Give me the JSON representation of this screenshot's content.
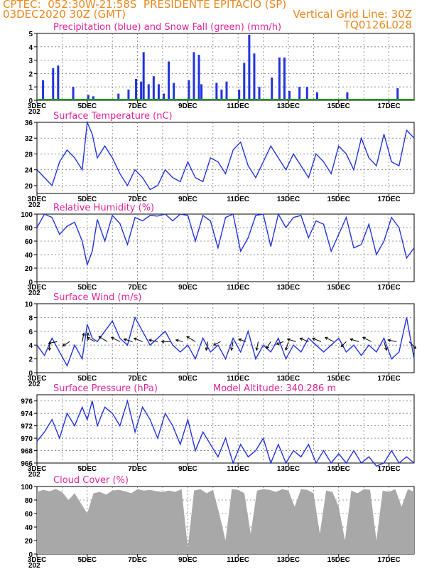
{
  "header": {
    "line1": "CPTEC:  052:30W-21:58S  PRESIDENTE EPITACIO (SP)",
    "line2_left": "03DEC2020 30Z (GMT)",
    "line2_right": "Vertical Grid Line: 30Z",
    "line3_right": "TQ0126L028"
  },
  "colors": {
    "header": "#e8871e",
    "title": "#e0249a",
    "series": "#2233dd",
    "snow": "#1a9a1a",
    "cloud": "#a8a8a8"
  },
  "x_axis": {
    "labels": [
      "3DEC",
      "5DEC",
      "7DEC",
      "9DEC",
      "11DEC",
      "13DEC",
      "15DEC",
      "17DEC"
    ],
    "year_fragment": "202"
  },
  "chart_data": [
    {
      "type": "bar",
      "title": "Precipitation (blue) and Snow Fall (green) (mm/h)",
      "ylim": [
        0,
        5
      ],
      "yticks": [
        "0",
        "1",
        "2",
        "3",
        "4",
        "5"
      ],
      "series": [
        {
          "name": "Precipitation",
          "values_by_day": [
            [
              3.2,
              1.5
            ],
            [
              3.6,
              2.4
            ],
            [
              3.8,
              2.6
            ],
            [
              4.4,
              1.0
            ],
            [
              5.0,
              0.4
            ],
            [
              5.2,
              0.3
            ],
            [
              6.2,
              0.5
            ],
            [
              6.6,
              0.8
            ],
            [
              6.9,
              1.6
            ],
            [
              7.1,
              1.4
            ],
            [
              7.2,
              3.6
            ],
            [
              7.4,
              1.2
            ],
            [
              7.6,
              1.8
            ],
            [
              7.8,
              1.2
            ],
            [
              8.0,
              0.5
            ],
            [
              8.2,
              2.9
            ],
            [
              8.4,
              1.3
            ],
            [
              9.0,
              1.5
            ],
            [
              9.2,
              3.6
            ],
            [
              9.4,
              3.4
            ],
            [
              9.5,
              1.2
            ],
            [
              10.1,
              1.3
            ],
            [
              10.3,
              0.8
            ],
            [
              10.5,
              1.4
            ],
            [
              11.0,
              0.8
            ],
            [
              11.2,
              2.8
            ],
            [
              11.4,
              4.9
            ],
            [
              11.6,
              3.5
            ],
            [
              11.8,
              1.0
            ],
            [
              12.3,
              1.7
            ],
            [
              12.6,
              3.2
            ],
            [
              12.8,
              3.2
            ],
            [
              13.0,
              0.7
            ],
            [
              13.4,
              1.0
            ],
            [
              13.7,
              1.0
            ],
            [
              14.1,
              0.6
            ],
            [
              15.3,
              0.6
            ],
            [
              17.3,
              0.9
            ]
          ]
        },
        {
          "name": "Snow Fall",
          "values": [
            0
          ]
        }
      ]
    },
    {
      "type": "line",
      "title": "Surface Temperature (nC)",
      "ylim": [
        18,
        36
      ],
      "yticks": [
        "20",
        "24",
        "28",
        "32",
        "36"
      ],
      "x": [
        3.0,
        3.3,
        3.6,
        3.9,
        4.2,
        4.5,
        4.8,
        5.0,
        5.2,
        5.4,
        5.7,
        6.0,
        6.3,
        6.6,
        6.9,
        7.2,
        7.5,
        7.8,
        8.1,
        8.4,
        8.7,
        9.0,
        9.3,
        9.6,
        9.9,
        10.2,
        10.5,
        10.8,
        11.1,
        11.4,
        11.7,
        12.0,
        12.3,
        12.6,
        12.9,
        13.2,
        13.5,
        13.8,
        14.1,
        14.4,
        14.7,
        15.0,
        15.3,
        15.6,
        15.9,
        16.2,
        16.5,
        16.8,
        17.1,
        17.4,
        17.7,
        18.0
      ],
      "values": [
        24,
        22,
        20,
        26,
        29,
        27,
        24,
        36,
        33,
        27,
        30,
        27,
        23,
        20,
        24,
        22,
        19,
        20,
        24,
        22,
        21,
        26,
        22,
        21,
        27,
        26,
        23,
        29,
        31,
        25,
        22,
        26,
        30,
        27,
        24,
        28,
        25,
        22,
        28,
        26,
        23,
        30,
        28,
        24,
        32,
        27,
        25,
        33,
        26,
        25,
        34,
        32
      ]
    },
    {
      "type": "line",
      "title": "Relative Humidity (%)",
      "ylim": [
        0,
        100
      ],
      "yticks": [
        "0",
        "20",
        "40",
        "60",
        "80",
        "100"
      ],
      "x": [
        3.0,
        3.3,
        3.6,
        3.9,
        4.2,
        4.5,
        4.8,
        5.0,
        5.2,
        5.4,
        5.7,
        6.0,
        6.3,
        6.6,
        6.9,
        7.2,
        7.5,
        7.8,
        8.1,
        8.4,
        8.7,
        9.0,
        9.3,
        9.6,
        9.9,
        10.2,
        10.5,
        10.8,
        11.1,
        11.4,
        11.7,
        12.0,
        12.3,
        12.6,
        12.9,
        13.2,
        13.5,
        13.8,
        14.1,
        14.4,
        14.7,
        15.0,
        15.3,
        15.6,
        15.9,
        16.2,
        16.5,
        16.8,
        17.1,
        17.4,
        17.7,
        18.0
      ],
      "values": [
        80,
        100,
        95,
        70,
        82,
        88,
        60,
        25,
        45,
        92,
        60,
        98,
        86,
        55,
        95,
        90,
        98,
        97,
        100,
        90,
        100,
        98,
        60,
        98,
        90,
        50,
        95,
        100,
        45,
        65,
        98,
        100,
        52,
        100,
        80,
        95,
        98,
        65,
        90,
        85,
        45,
        70,
        95,
        50,
        55,
        85,
        40,
        60,
        95,
        80,
        35,
        50
      ]
    },
    {
      "type": "line",
      "title": "Surface Wind (m/s)",
      "ylim": [
        0,
        10
      ],
      "yticks": [
        "0",
        "2",
        "4",
        "6",
        "8",
        "10"
      ],
      "x": [
        3.0,
        3.3,
        3.6,
        3.9,
        4.2,
        4.5,
        4.8,
        5.0,
        5.2,
        5.4,
        5.7,
        6.0,
        6.3,
        6.6,
        6.9,
        7.2,
        7.5,
        7.8,
        8.1,
        8.4,
        8.7,
        9.0,
        9.3,
        9.6,
        9.9,
        10.2,
        10.5,
        10.8,
        11.1,
        11.4,
        11.7,
        12.0,
        12.3,
        12.6,
        12.9,
        13.2,
        13.5,
        13.8,
        14.1,
        14.4,
        14.7,
        15.0,
        15.3,
        15.6,
        15.9,
        16.2,
        16.5,
        16.8,
        17.1,
        17.4,
        17.7,
        18.0
      ],
      "values": [
        4,
        2.5,
        5,
        3,
        1,
        4,
        2,
        7,
        5,
        4.5,
        6,
        7.5,
        5,
        4,
        8,
        6,
        4,
        5,
        6,
        4,
        3,
        4,
        2,
        5,
        3,
        4,
        2,
        5,
        3,
        6,
        2,
        4,
        3,
        5,
        2,
        4,
        3,
        5,
        4,
        3,
        4,
        5,
        3,
        4,
        2.5,
        4,
        3,
        5,
        2,
        3,
        8,
        2
      ],
      "wind_barbs": [
        {
          "day": 3.5,
          "u": 0,
          "v": -1
        },
        {
          "day": 3.8,
          "u": -1,
          "v": -0.2
        },
        {
          "day": 4.3,
          "u": -0.8,
          "v": -0.5
        },
        {
          "day": 4.8,
          "u": 0.2,
          "v": 1
        },
        {
          "day": 5.0,
          "u": 0.1,
          "v": 1
        },
        {
          "day": 5.3,
          "u": -0.9,
          "v": 0.5
        },
        {
          "day": 5.8,
          "u": -1,
          "v": 0.6
        },
        {
          "day": 6.3,
          "u": -1,
          "v": 0.5
        },
        {
          "day": 6.8,
          "u": -1,
          "v": 0.3
        },
        {
          "day": 7.2,
          "u": -1,
          "v": 0.4
        },
        {
          "day": 7.8,
          "u": -1,
          "v": 0.2
        },
        {
          "day": 8.3,
          "u": -1,
          "v": 0
        },
        {
          "day": 8.8,
          "u": -0.8,
          "v": 0.2
        },
        {
          "day": 9.3,
          "u": -1,
          "v": 0.6
        },
        {
          "day": 9.8,
          "u": -0.2,
          "v": -1
        },
        {
          "day": 10.3,
          "u": -0.8,
          "v": -0.4
        },
        {
          "day": 10.8,
          "u": -0.2,
          "v": -1
        },
        {
          "day": 11.3,
          "u": -0.8,
          "v": 0.3
        },
        {
          "day": 11.8,
          "u": -0.2,
          "v": -1
        },
        {
          "day": 12.3,
          "u": -0.5,
          "v": -0.8
        },
        {
          "day": 12.8,
          "u": -0.8,
          "v": -0.3
        },
        {
          "day": 13.0,
          "u": -0.3,
          "v": -1
        },
        {
          "day": 13.3,
          "u": -1,
          "v": 0.3
        },
        {
          "day": 13.8,
          "u": -1,
          "v": 0.4
        },
        {
          "day": 14.3,
          "u": -1,
          "v": 0.4
        },
        {
          "day": 14.8,
          "u": -1,
          "v": 0.5
        },
        {
          "day": 15.3,
          "u": -0.6,
          "v": -0.6
        },
        {
          "day": 15.8,
          "u": -1,
          "v": 0.3
        },
        {
          "day": 16.3,
          "u": -1,
          "v": 0.5
        },
        {
          "day": 16.8,
          "u": 0.3,
          "v": -1
        },
        {
          "day": 17.3,
          "u": -1,
          "v": 0.2
        },
        {
          "day": 17.8,
          "u": 0.8,
          "v": -0.8
        }
      ]
    },
    {
      "type": "line",
      "title": "Surface Pressure (hPa)",
      "subtitle": "Model Altitude: 340.286 m",
      "ylim": [
        966,
        977
      ],
      "yticks": [
        "966",
        "968",
        "970",
        "972",
        "974",
        "976"
      ],
      "x": [
        3.0,
        3.3,
        3.6,
        3.9,
        4.2,
        4.5,
        4.8,
        5.0,
        5.2,
        5.4,
        5.7,
        6.0,
        6.3,
        6.6,
        6.9,
        7.2,
        7.5,
        7.8,
        8.1,
        8.4,
        8.7,
        9.0,
        9.3,
        9.6,
        9.9,
        10.2,
        10.5,
        10.8,
        11.1,
        11.4,
        11.7,
        12.0,
        12.3,
        12.6,
        12.9,
        13.2,
        13.5,
        13.8,
        14.1,
        14.4,
        14.7,
        15.0,
        15.3,
        15.6,
        15.9,
        16.2,
        16.5,
        16.8,
        17.1,
        17.4,
        17.7,
        18.0
      ],
      "values": [
        969.5,
        971,
        973,
        970,
        974,
        972,
        975,
        973,
        976,
        972,
        975,
        974,
        972,
        976,
        971,
        975,
        973,
        970,
        974,
        972,
        969,
        973,
        968,
        971,
        969,
        967,
        970,
        966,
        969,
        967,
        968,
        970,
        966,
        969,
        966,
        968,
        967,
        969,
        966,
        968,
        966,
        967.5,
        966,
        968,
        966,
        967,
        965.5,
        966,
        968,
        966,
        967,
        966
      ]
    },
    {
      "type": "area",
      "title": "Cloud Cover (%)",
      "ylim": [
        0,
        100
      ],
      "yticks": [
        "0",
        "20",
        "40",
        "60",
        "80",
        "100"
      ],
      "x": [
        3.0,
        3.25,
        3.5,
        3.75,
        4.0,
        4.25,
        4.5,
        4.75,
        5.0,
        5.25,
        5.5,
        5.75,
        6.0,
        6.25,
        6.5,
        6.75,
        7.0,
        7.25,
        7.5,
        7.75,
        8.0,
        8.25,
        8.5,
        8.75,
        9.0,
        9.25,
        9.5,
        9.75,
        10.0,
        10.25,
        10.5,
        10.75,
        11.0,
        11.25,
        11.5,
        11.75,
        12.0,
        12.25,
        12.5,
        12.75,
        13.0,
        13.25,
        13.5,
        13.75,
        14.0,
        14.25,
        14.5,
        14.75,
        15.0,
        15.25,
        15.5,
        15.75,
        16.0,
        16.25,
        16.5,
        16.75,
        17.0,
        17.25,
        17.5,
        17.75,
        18.0
      ],
      "values": [
        92,
        95,
        93,
        96,
        92,
        80,
        90,
        75,
        60,
        90,
        92,
        88,
        94,
        95,
        93,
        90,
        96,
        94,
        95,
        93,
        92,
        94,
        92,
        96,
        10,
        94,
        96,
        90,
        95,
        60,
        20,
        96,
        95,
        90,
        30,
        94,
        96,
        95,
        92,
        96,
        94,
        70,
        96,
        95,
        90,
        30,
        94,
        92,
        70,
        20,
        94,
        90,
        96,
        95,
        20,
        94,
        92,
        96,
        70,
        96,
        92
      ]
    }
  ]
}
